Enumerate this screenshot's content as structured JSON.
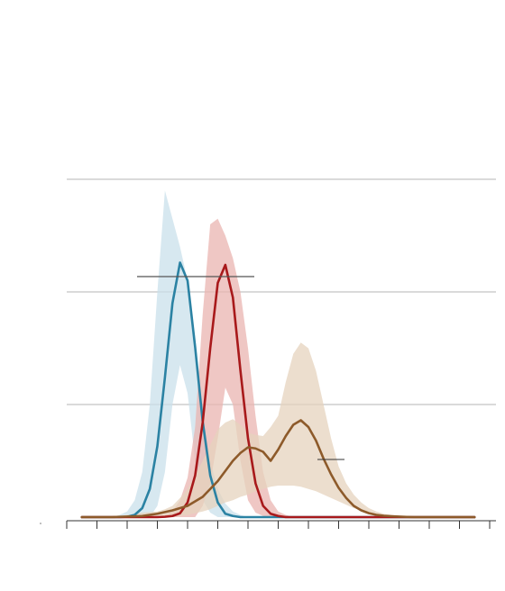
{
  "chart_data": {
    "type": "line",
    "xlim": [
      0,
      14
    ],
    "xticks": [
      0,
      1,
      2,
      3,
      4,
      5,
      6,
      7,
      8,
      9,
      10,
      11,
      12,
      13,
      14
    ],
    "ylim": [
      -0.032,
      3.0
    ],
    "yticks": [
      1,
      2,
      3
    ],
    "grid": true,
    "x": [
      0.5,
      1.5,
      1.75,
      2,
      2.25,
      2.5,
      2.75,
      3,
      3.25,
      3.5,
      3.75,
      4,
      4.25,
      4.5,
      4.75,
      5,
      5.25,
      5.5,
      5.75,
      6,
      6.25,
      6.5,
      6.75,
      7,
      7.25,
      7.5,
      7.75,
      8,
      8.25,
      8.5,
      8.75,
      9,
      9.25,
      9.5,
      9.75,
      10,
      10.25,
      10.5,
      10.75,
      11,
      11.25,
      11.5,
      13.5
    ],
    "series": [
      {
        "color": "#2b82a3",
        "band_color": "#c9e0eb",
        "values": [
          0,
          0,
          0,
          0.003,
          0.02,
          0.08,
          0.25,
          0.63,
          1.24,
          1.9,
          2.26,
          2.1,
          1.51,
          0.85,
          0.37,
          0.13,
          0.03,
          0.01,
          0,
          0,
          0,
          0,
          0,
          0,
          0,
          0,
          0,
          0,
          0,
          0,
          0,
          0,
          0,
          0,
          0,
          0,
          0,
          0,
          0,
          0,
          0,
          0,
          0
        ],
        "high": [
          0,
          0,
          0.02,
          0.05,
          0.15,
          0.4,
          1.0,
          2.0,
          2.9,
          2.65,
          2.4,
          2.1,
          1.6,
          0.9,
          0.5,
          0.25,
          0.12,
          0.05,
          0.02,
          0,
          0,
          0,
          0,
          0,
          0,
          0,
          0,
          0,
          0,
          0,
          0,
          0,
          0,
          0,
          0,
          0,
          0,
          0,
          0,
          0,
          0,
          0,
          0
        ],
        "low": [
          0,
          0,
          0,
          0,
          0,
          0,
          0,
          0.1,
          0.4,
          1.0,
          1.35,
          1.1,
          0.5,
          0.15,
          0.04,
          0,
          0,
          0,
          0,
          0,
          0,
          0,
          0,
          0,
          0,
          0,
          0,
          0,
          0,
          0,
          0,
          0,
          0,
          0,
          0,
          0,
          0,
          0,
          0,
          0,
          0,
          0,
          0
        ]
      },
      {
        "color": "#a8191b",
        "band_color": "#e9b4b0",
        "values": [
          0,
          0,
          0,
          0,
          0,
          0,
          0,
          0,
          0.003,
          0.01,
          0.034,
          0.13,
          0.37,
          0.84,
          1.5,
          2.08,
          2.24,
          1.95,
          1.3,
          0.7,
          0.3,
          0.1,
          0.03,
          0.01,
          0,
          0,
          0,
          0,
          0,
          0,
          0,
          0,
          0,
          0,
          0,
          0,
          0,
          0,
          0,
          0,
          0,
          0,
          0
        ],
        "high": [
          0,
          0,
          0,
          0,
          0,
          0,
          0,
          0,
          0.02,
          0.05,
          0.15,
          0.35,
          0.8,
          1.8,
          2.6,
          2.65,
          2.5,
          2.3,
          2.0,
          1.5,
          0.9,
          0.4,
          0.15,
          0.05,
          0.02,
          0,
          0,
          0,
          0,
          0,
          0,
          0,
          0,
          0,
          0,
          0,
          0,
          0,
          0,
          0,
          0,
          0,
          0
        ],
        "low": [
          0,
          0,
          0,
          0,
          0,
          0,
          0,
          0,
          0,
          0,
          0,
          0,
          0,
          0.1,
          0.3,
          0.7,
          1.15,
          1.0,
          0.5,
          0.15,
          0.04,
          0.01,
          0,
          0,
          0,
          0,
          0,
          0,
          0,
          0,
          0,
          0,
          0,
          0,
          0,
          0,
          0,
          0,
          0,
          0,
          0,
          0,
          0
        ]
      },
      {
        "color": "#8d5a2a",
        "band_color": "#e6d3bd",
        "values": [
          0,
          0,
          0.003,
          0.005,
          0.007,
          0.01,
          0.02,
          0.03,
          0.045,
          0.06,
          0.08,
          0.1,
          0.14,
          0.18,
          0.25,
          0.32,
          0.41,
          0.5,
          0.57,
          0.62,
          0.61,
          0.58,
          0.5,
          0.6,
          0.72,
          0.82,
          0.86,
          0.8,
          0.68,
          0.52,
          0.38,
          0.26,
          0.17,
          0.1,
          0.06,
          0.035,
          0.02,
          0.012,
          0.008,
          0.005,
          0.002,
          0,
          0
        ],
        "high": [
          0,
          0,
          0.01,
          0.02,
          0.03,
          0.04,
          0.045,
          0.05,
          0.07,
          0.1,
          0.17,
          0.25,
          0.37,
          0.5,
          0.64,
          0.78,
          0.84,
          0.87,
          0.82,
          0.75,
          0.73,
          0.72,
          0.8,
          0.9,
          1.2,
          1.45,
          1.55,
          1.5,
          1.3,
          1.0,
          0.7,
          0.45,
          0.3,
          0.2,
          0.13,
          0.08,
          0.05,
          0.03,
          0.02,
          0.01,
          0.005,
          0,
          0
        ],
        "low": [
          0,
          0,
          0,
          0,
          0,
          0,
          0,
          0,
          0,
          0,
          0.01,
          0.02,
          0.035,
          0.05,
          0.07,
          0.1,
          0.13,
          0.15,
          0.18,
          0.2,
          0.23,
          0.25,
          0.27,
          0.28,
          0.28,
          0.28,
          0.27,
          0.25,
          0.23,
          0.2,
          0.17,
          0.14,
          0.11,
          0.08,
          0.06,
          0.04,
          0.02,
          0.01,
          0,
          0,
          0,
          0,
          0
        ]
      }
    ]
  }
}
